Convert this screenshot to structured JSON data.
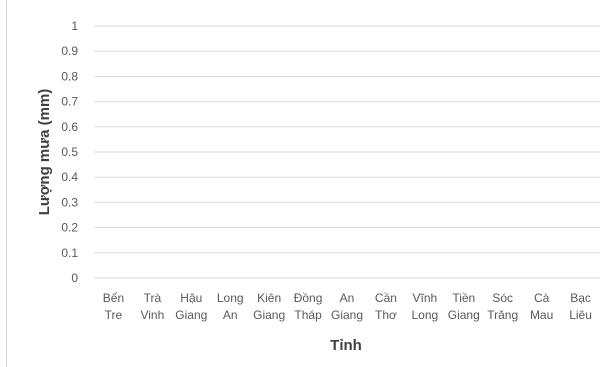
{
  "chart_data": {
    "type": "bar",
    "xlabel": "Tỉnh",
    "ylabel": "Lượng mưa (mm)",
    "categories": [
      [
        "Bến",
        "Tre"
      ],
      [
        "Trà",
        "Vinh"
      ],
      [
        "Hậu",
        "Giang"
      ],
      [
        "Long",
        "An"
      ],
      [
        "Kiên",
        "Giang"
      ],
      [
        "Đồng",
        "Tháp"
      ],
      [
        "An",
        "Giang"
      ],
      [
        "Cần",
        "Thơ"
      ],
      [
        "Vĩnh",
        "Long"
      ],
      [
        "Tiền",
        "Giang"
      ],
      [
        "Sóc",
        "Trăng"
      ],
      [
        "Cà",
        "Mau"
      ],
      [
        "Bạc",
        "Liêu"
      ]
    ],
    "values": [
      0,
      0,
      0,
      0,
      0,
      0,
      0,
      0,
      0,
      0,
      0,
      0,
      0
    ],
    "ylim": [
      0,
      1
    ],
    "yticks": [
      "0",
      "0.1",
      "0.2",
      "0.3",
      "0.4",
      "0.5",
      "0.6",
      "0.7",
      "0.8",
      "0.9",
      "1"
    ],
    "grid": true,
    "legend": "none",
    "colors": {
      "grid": "#d9d9d9",
      "text": "#595959",
      "title": "#404040"
    }
  }
}
